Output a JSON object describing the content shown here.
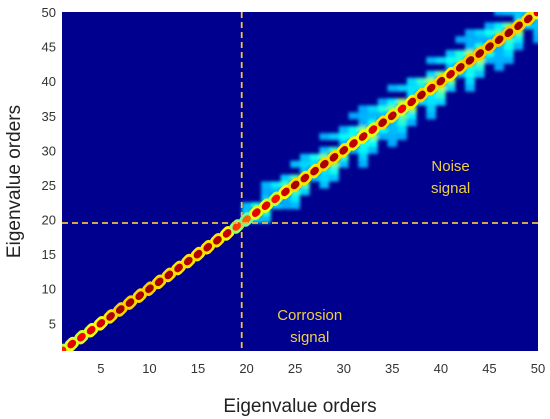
{
  "chart_data": {
    "type": "heatmap",
    "xlabel": "Eigenvalue orders",
    "ylabel": "Eigenvalue orders",
    "xlim": [
      1,
      50
    ],
    "ylim": [
      1,
      50
    ],
    "x_ticks": [
      5,
      10,
      15,
      20,
      25,
      30,
      35,
      40,
      45,
      50
    ],
    "y_ticks": [
      5,
      10,
      15,
      20,
      25,
      30,
      35,
      40,
      45,
      50
    ],
    "colormap": "jet",
    "background_color": "#00008f",
    "separator": {
      "x": 19.5,
      "y": 19.5,
      "style": "dashed",
      "color": "#f0c040"
    },
    "annotations": [
      {
        "text_lines": [
          "Corrosion",
          "signal"
        ],
        "x": 26.5,
        "y": 5.5,
        "color": "#f0d040"
      },
      {
        "text_lines": [
          "Noise",
          "signal"
        ],
        "x": 41,
        "y": 27,
        "color": "#f0d040"
      }
    ],
    "diagonal_intensity": [
      {
        "order": 1,
        "value": 0.85
      },
      {
        "order": 2,
        "value": 0.9
      },
      {
        "order": 3,
        "value": 0.88
      },
      {
        "order": 4,
        "value": 0.9
      },
      {
        "order": 5,
        "value": 0.92
      },
      {
        "order": 6,
        "value": 0.95
      },
      {
        "order": 7,
        "value": 0.97
      },
      {
        "order": 8,
        "value": 0.97
      },
      {
        "order": 9,
        "value": 0.96
      },
      {
        "order": 10,
        "value": 0.97
      },
      {
        "order": 11,
        "value": 0.96
      },
      {
        "order": 12,
        "value": 0.96
      },
      {
        "order": 13,
        "value": 0.95
      },
      {
        "order": 14,
        "value": 0.95
      },
      {
        "order": 15,
        "value": 0.95
      },
      {
        "order": 16,
        "value": 0.95
      },
      {
        "order": 17,
        "value": 0.95
      },
      {
        "order": 18,
        "value": 0.93
      },
      {
        "order": 19,
        "value": 0.82
      },
      {
        "order": 20,
        "value": 0.78
      },
      {
        "order": 21,
        "value": 0.9
      },
      {
        "order": 22,
        "value": 0.9
      },
      {
        "order": 23,
        "value": 0.86
      },
      {
        "order": 24,
        "value": 0.93
      },
      {
        "order": 25,
        "value": 0.96
      },
      {
        "order": 26,
        "value": 0.95
      },
      {
        "order": 27,
        "value": 0.95
      },
      {
        "order": 28,
        "value": 0.96
      },
      {
        "order": 29,
        "value": 0.96
      },
      {
        "order": 30,
        "value": 0.95
      },
      {
        "order": 31,
        "value": 0.94
      },
      {
        "order": 32,
        "value": 0.93
      },
      {
        "order": 33,
        "value": 0.9
      },
      {
        "order": 34,
        "value": 0.96
      },
      {
        "order": 35,
        "value": 0.95
      },
      {
        "order": 36,
        "value": 0.88
      },
      {
        "order": 37,
        "value": 0.94
      },
      {
        "order": 38,
        "value": 0.97
      },
      {
        "order": 39,
        "value": 0.95
      },
      {
        "order": 40,
        "value": 0.97
      },
      {
        "order": 41,
        "value": 0.94
      },
      {
        "order": 42,
        "value": 0.97
      },
      {
        "order": 43,
        "value": 0.98
      },
      {
        "order": 44,
        "value": 0.98
      },
      {
        "order": 45,
        "value": 0.98
      },
      {
        "order": 46,
        "value": 0.98
      },
      {
        "order": 47,
        "value": 0.98
      },
      {
        "order": 48,
        "value": 0.97
      },
      {
        "order": 49,
        "value": 0.96
      },
      {
        "order": 50,
        "value": 0.9
      }
    ],
    "noise_spread": [
      {
        "order": 19,
        "value": 0.2
      },
      {
        "order": 22,
        "value": 0.35
      },
      {
        "order": 25,
        "value": 0.45
      },
      {
        "order": 28,
        "value": 0.5
      },
      {
        "order": 31,
        "value": 0.5
      },
      {
        "order": 34,
        "value": 0.55
      },
      {
        "order": 37,
        "value": 0.6
      },
      {
        "order": 40,
        "value": 0.6
      },
      {
        "order": 43,
        "value": 0.55
      },
      {
        "order": 46,
        "value": 0.5
      },
      {
        "order": 50,
        "value": 0.45
      }
    ]
  }
}
